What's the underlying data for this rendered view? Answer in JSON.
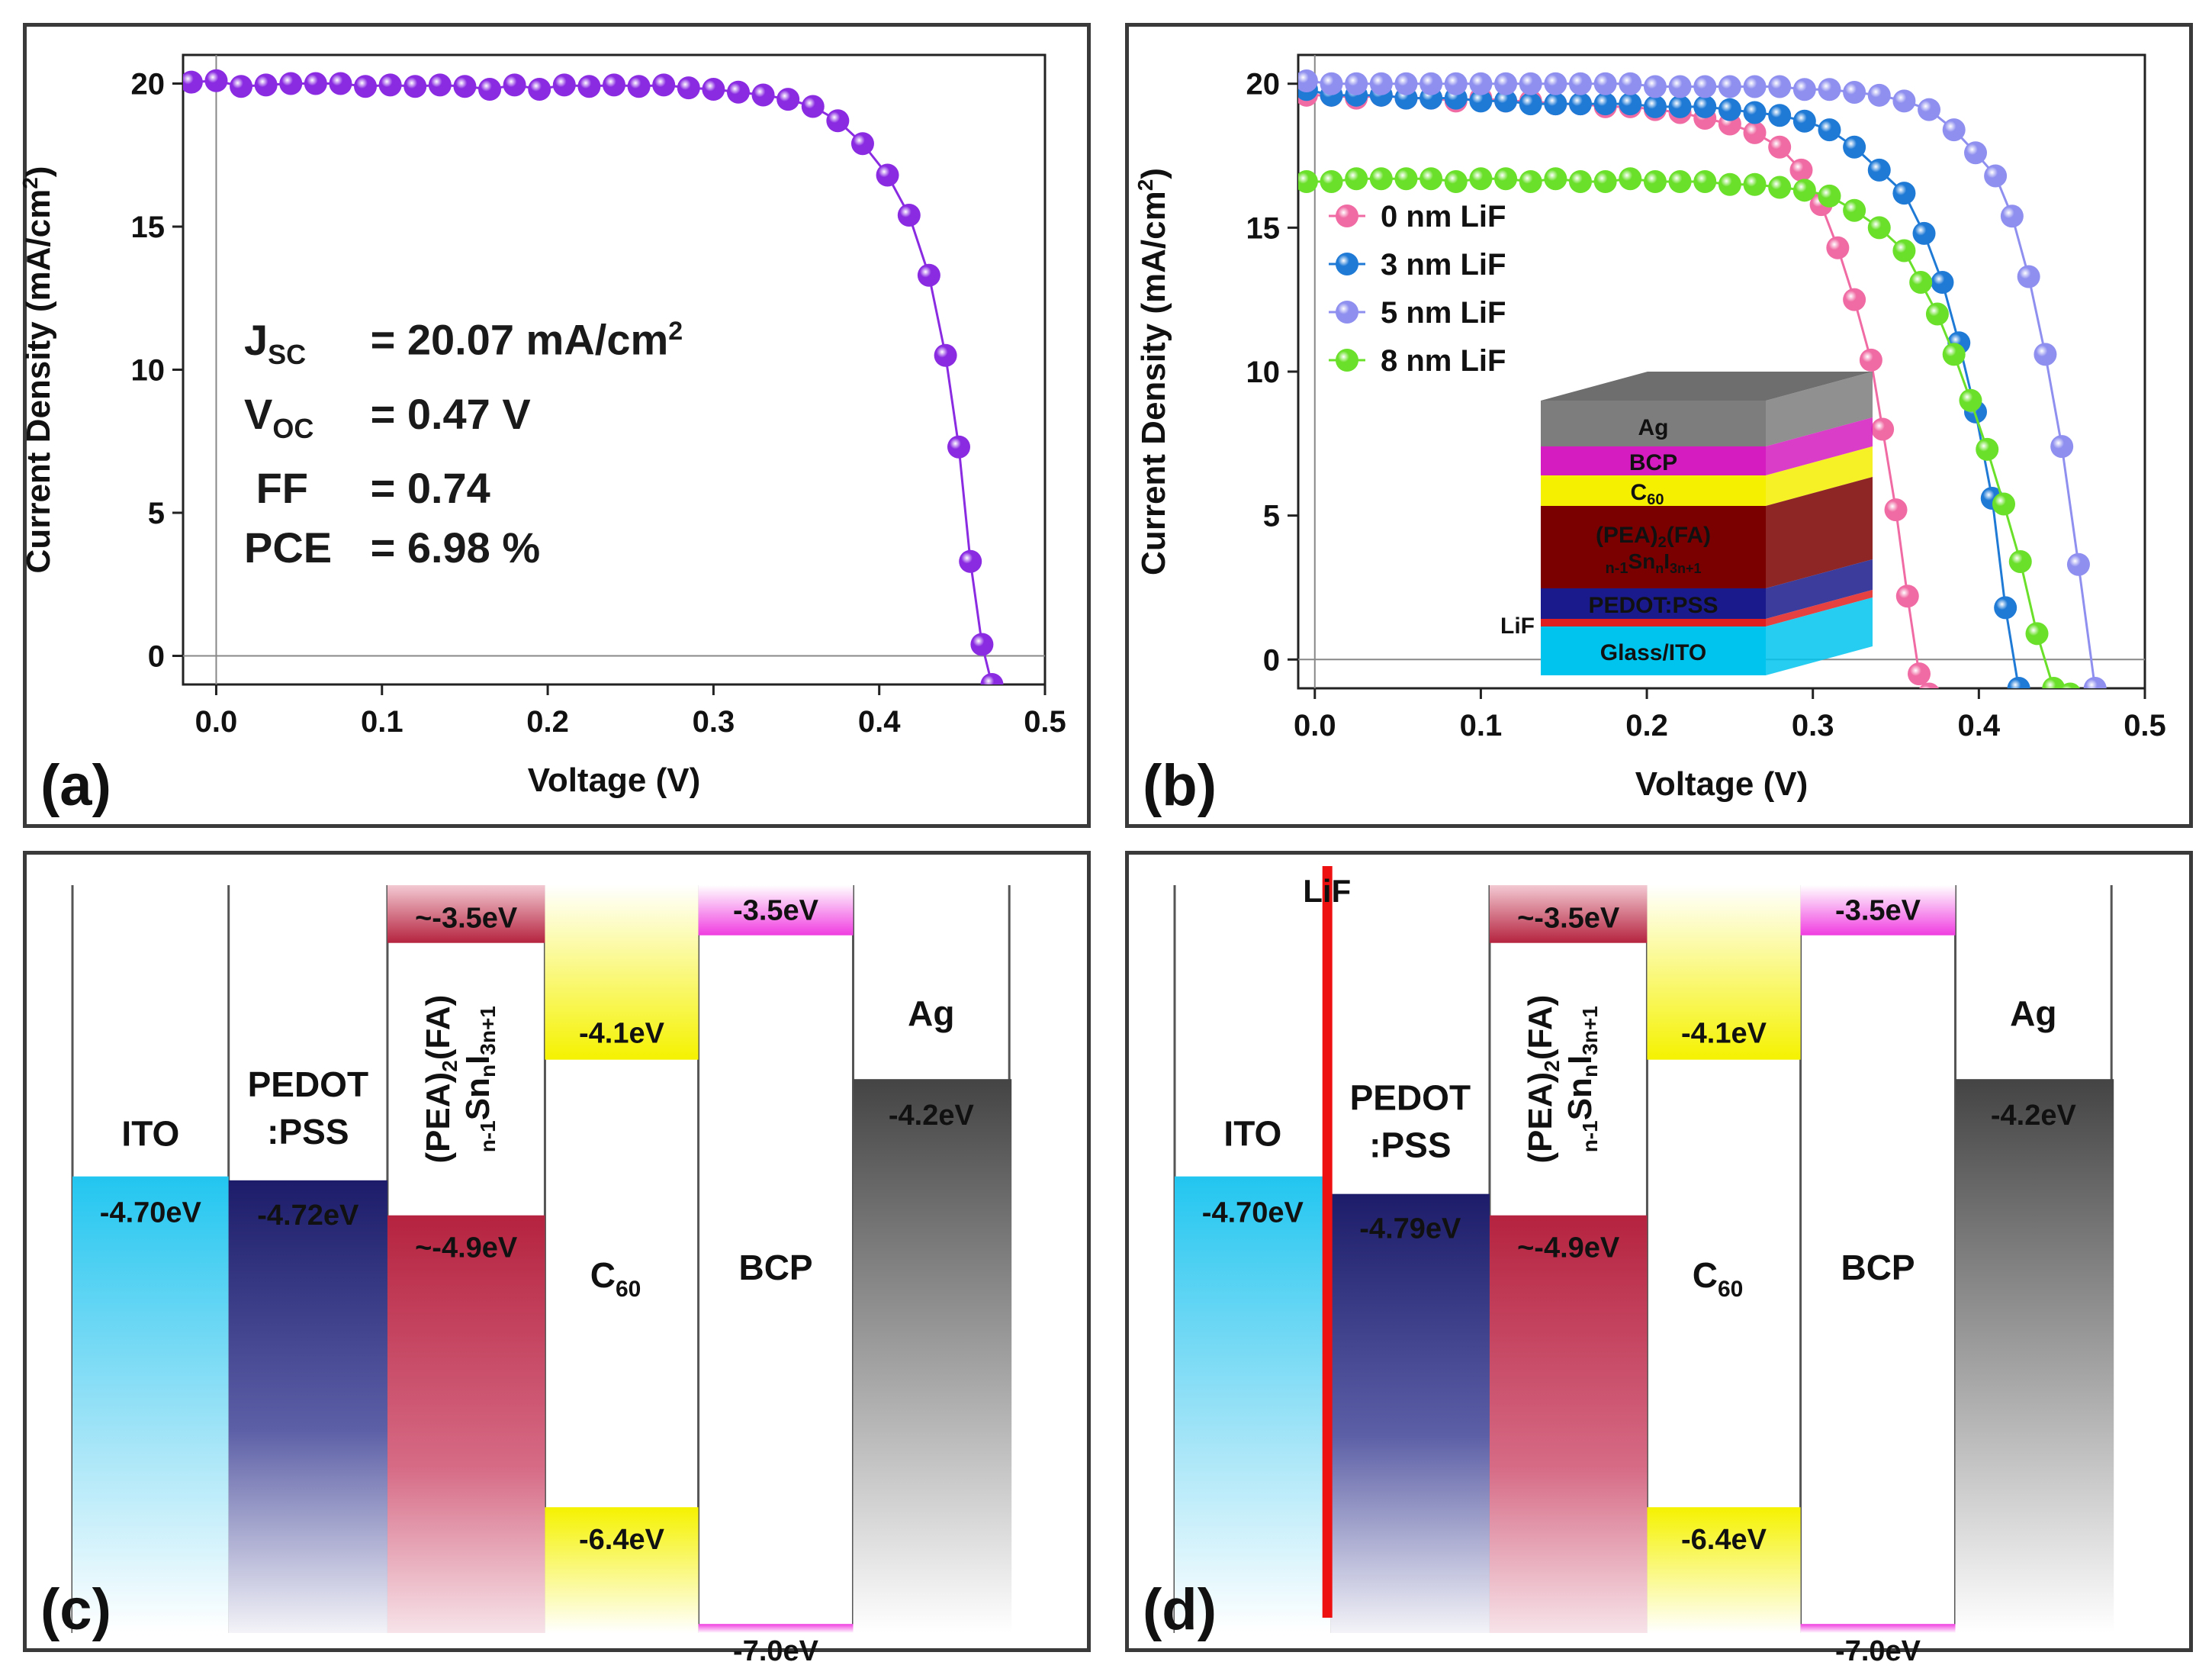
{
  "figure": {
    "panel_letters": [
      "(a)",
      "(b)",
      "(c)",
      "(d)"
    ]
  },
  "chart_data": [
    {
      "panel": "(a)",
      "type": "line",
      "xlabel": "Voltage (V)",
      "ylabel": "Current Density (mA/cm2)",
      "xlim": [
        -0.02,
        0.5
      ],
      "ylim": [
        -1,
        21
      ],
      "xticks": [
        "0.0",
        "0.1",
        "0.2",
        "0.3",
        "0.4",
        "0.5"
      ],
      "yticks": [
        "0",
        "5",
        "10",
        "15",
        "20"
      ],
      "series": [
        {
          "name": "device",
          "color": "#8a2be2",
          "x": [
            -0.015,
            0.0,
            0.015,
            0.03,
            0.045,
            0.06,
            0.075,
            0.09,
            0.105,
            0.12,
            0.135,
            0.15,
            0.165,
            0.18,
            0.195,
            0.21,
            0.225,
            0.24,
            0.255,
            0.27,
            0.285,
            0.3,
            0.315,
            0.33,
            0.345,
            0.36,
            0.375,
            0.39,
            0.405,
            0.418,
            0.43,
            0.44,
            0.448,
            0.455,
            0.462,
            0.468
          ],
          "y": [
            20.05,
            20.1,
            19.9,
            19.95,
            20.0,
            20.0,
            20.0,
            19.9,
            19.95,
            19.9,
            19.95,
            19.9,
            19.8,
            19.95,
            19.8,
            19.95,
            19.9,
            19.95,
            19.9,
            19.95,
            19.85,
            19.8,
            19.7,
            19.6,
            19.45,
            19.2,
            18.7,
            17.9,
            16.8,
            15.4,
            13.3,
            10.5,
            7.3,
            3.3,
            0.4,
            -1.0
          ]
        }
      ],
      "annotations": {
        "jsc_label": "J",
        "jsc_sub": "SC",
        "jsc_value": "= 20.07 mA/cm",
        "jsc_sup": "2",
        "voc_label": "V",
        "voc_sub": "OC",
        "voc_value": "= 0.47 V",
        "ff_label": "FF",
        "ff_value": "= 0.74",
        "pce_label": "PCE",
        "pce_value": "= 6.98 %"
      }
    },
    {
      "panel": "(b)",
      "type": "line",
      "xlabel": "Voltage (V)",
      "ylabel": "Current Density (mA/cm2)",
      "xlim": [
        -0.01,
        0.5
      ],
      "ylim": [
        -1,
        21
      ],
      "xticks": [
        "0.0",
        "0.1",
        "0.2",
        "0.3",
        "0.4",
        "0.5"
      ],
      "yticks": [
        "0",
        "5",
        "10",
        "15",
        "20"
      ],
      "legend_position": "left-middle",
      "series": [
        {
          "name": "0 nm LiF",
          "color": "#f06ba3",
          "x": [
            -0.005,
            0.01,
            0.025,
            0.04,
            0.055,
            0.07,
            0.085,
            0.1,
            0.115,
            0.13,
            0.145,
            0.16,
            0.175,
            0.19,
            0.205,
            0.22,
            0.235,
            0.25,
            0.265,
            0.28,
            0.293,
            0.305,
            0.315,
            0.325,
            0.335,
            0.342,
            0.35,
            0.357,
            0.364,
            0.37,
            0.375,
            0.38
          ],
          "y": [
            19.6,
            19.6,
            19.5,
            19.6,
            19.5,
            19.5,
            19.4,
            19.5,
            19.4,
            19.4,
            19.3,
            19.3,
            19.2,
            19.2,
            19.1,
            19.0,
            18.8,
            18.6,
            18.3,
            17.8,
            17.0,
            15.8,
            14.3,
            12.5,
            10.4,
            8.0,
            5.2,
            2.2,
            -0.5,
            -1.2,
            -1.5,
            -1.8
          ]
        },
        {
          "name": "3 nm LiF",
          "color": "#1f7ad6",
          "x": [
            -0.005,
            0.01,
            0.025,
            0.04,
            0.055,
            0.07,
            0.085,
            0.1,
            0.115,
            0.13,
            0.145,
            0.16,
            0.175,
            0.19,
            0.205,
            0.22,
            0.235,
            0.25,
            0.265,
            0.28,
            0.295,
            0.31,
            0.325,
            0.34,
            0.355,
            0.367,
            0.378,
            0.388,
            0.398,
            0.408,
            0.416,
            0.424
          ],
          "y": [
            19.8,
            19.6,
            19.6,
            19.6,
            19.5,
            19.5,
            19.5,
            19.4,
            19.4,
            19.3,
            19.3,
            19.3,
            19.3,
            19.3,
            19.2,
            19.2,
            19.2,
            19.1,
            19.0,
            18.9,
            18.7,
            18.4,
            17.8,
            17.0,
            16.2,
            14.8,
            13.1,
            11.0,
            8.6,
            5.6,
            1.8,
            -1.0
          ]
        },
        {
          "name": "5 nm LiF",
          "color": "#8f8ff0",
          "x": [
            -0.005,
            0.01,
            0.025,
            0.04,
            0.055,
            0.07,
            0.085,
            0.1,
            0.115,
            0.13,
            0.145,
            0.16,
            0.175,
            0.19,
            0.205,
            0.22,
            0.235,
            0.25,
            0.265,
            0.28,
            0.295,
            0.31,
            0.325,
            0.34,
            0.355,
            0.37,
            0.385,
            0.398,
            0.41,
            0.42,
            0.43,
            0.44,
            0.45,
            0.46,
            0.47
          ],
          "y": [
            20.1,
            20.0,
            20.0,
            20.0,
            20.0,
            20.0,
            20.0,
            20.0,
            20.0,
            20.0,
            20.0,
            20.0,
            20.0,
            20.0,
            19.9,
            19.9,
            19.9,
            19.9,
            19.9,
            19.9,
            19.8,
            19.8,
            19.7,
            19.6,
            19.4,
            19.1,
            18.4,
            17.6,
            16.8,
            15.4,
            13.3,
            10.6,
            7.4,
            3.3,
            -1.0
          ]
        },
        {
          "name": "8 nm LiF",
          "color": "#6ae02a",
          "x": [
            -0.005,
            0.01,
            0.025,
            0.04,
            0.055,
            0.07,
            0.085,
            0.1,
            0.115,
            0.13,
            0.145,
            0.16,
            0.175,
            0.19,
            0.205,
            0.22,
            0.235,
            0.25,
            0.265,
            0.28,
            0.295,
            0.31,
            0.325,
            0.34,
            0.355,
            0.365,
            0.375,
            0.385,
            0.395,
            0.405,
            0.415,
            0.425,
            0.435,
            0.445,
            0.455
          ],
          "y": [
            16.6,
            16.6,
            16.7,
            16.7,
            16.7,
            16.7,
            16.6,
            16.7,
            16.7,
            16.6,
            16.7,
            16.6,
            16.6,
            16.7,
            16.6,
            16.6,
            16.6,
            16.5,
            16.5,
            16.4,
            16.3,
            16.1,
            15.6,
            15.0,
            14.2,
            13.1,
            12.0,
            10.6,
            9.0,
            7.3,
            5.4,
            3.4,
            0.9,
            -1.0,
            -1.2
          ]
        }
      ],
      "inset": {
        "layers": [
          {
            "label": "Ag",
            "color": "#7a7a7a"
          },
          {
            "label": "BCP",
            "color": "#d11bbf"
          },
          {
            "label": "C60",
            "color": "#f5f000"
          },
          {
            "label": "(PEA)2(FA)n-1SnnI3n+1",
            "color": "#7a0000"
          },
          {
            "label": "PEDOT:PSS",
            "color": "#1a1a8c"
          },
          {
            "label": "LiF",
            "color": "#e02020"
          },
          {
            "label": "Glass/ITO",
            "color": "#00c8f0"
          }
        ],
        "label_ag": "Ag",
        "label_bcp": "BCP",
        "label_c": "C",
        "label_c_sub": "60",
        "label_pea_main": "(PEA)",
        "label_pea_sub1": "2",
        "label_pea_fa": "(FA)",
        "label_pea2_pre": "n-1",
        "label_pea2_sn": "Sn",
        "label_pea2_n": "n",
        "label_pea2_i": "I",
        "label_pea2_sub": "3n+1",
        "label_pedot": "PEDOT:PSS",
        "label_lif": "LiF",
        "label_glass": "Glass/ITO"
      }
    },
    {
      "panel": "(c)",
      "type": "diagram",
      "columns": [
        {
          "name": "ITO",
          "top": null,
          "bottom": "-4.70eV"
        },
        {
          "name": "PEDOT:PSS",
          "name_l1": "PEDOT",
          "name_l2": ":PSS",
          "bottom": "-4.72eV"
        },
        {
          "name": "(PEA)2(FA)n-1SnnI3n+1",
          "top": "~-3.5eV",
          "bottom": "~-4.9eV"
        },
        {
          "name": "C60",
          "top": "-4.1eV",
          "bottom": "-6.4eV"
        },
        {
          "name": "BCP",
          "top": "-3.5eV",
          "bottom": "-7.0eV"
        },
        {
          "name": "Ag",
          "bottom": "-4.2eV"
        }
      ]
    },
    {
      "panel": "(d)",
      "type": "diagram",
      "lif_label": "LiF",
      "columns": [
        {
          "name": "ITO",
          "bottom": "-4.70eV"
        },
        {
          "name": "PEDOT:PSS",
          "name_l1": "PEDOT",
          "name_l2": ":PSS",
          "bottom": "-4.79eV"
        },
        {
          "name": "(PEA)2(FA)n-1SnnI3n+1",
          "top": "~-3.5eV",
          "bottom": "~-4.9eV"
        },
        {
          "name": "C60",
          "top": "-4.1eV",
          "bottom": "-6.4eV"
        },
        {
          "name": "BCP",
          "top": "-3.5eV",
          "bottom": "-7.0eV"
        },
        {
          "name": "Ag",
          "bottom": "-4.2eV"
        }
      ]
    }
  ]
}
